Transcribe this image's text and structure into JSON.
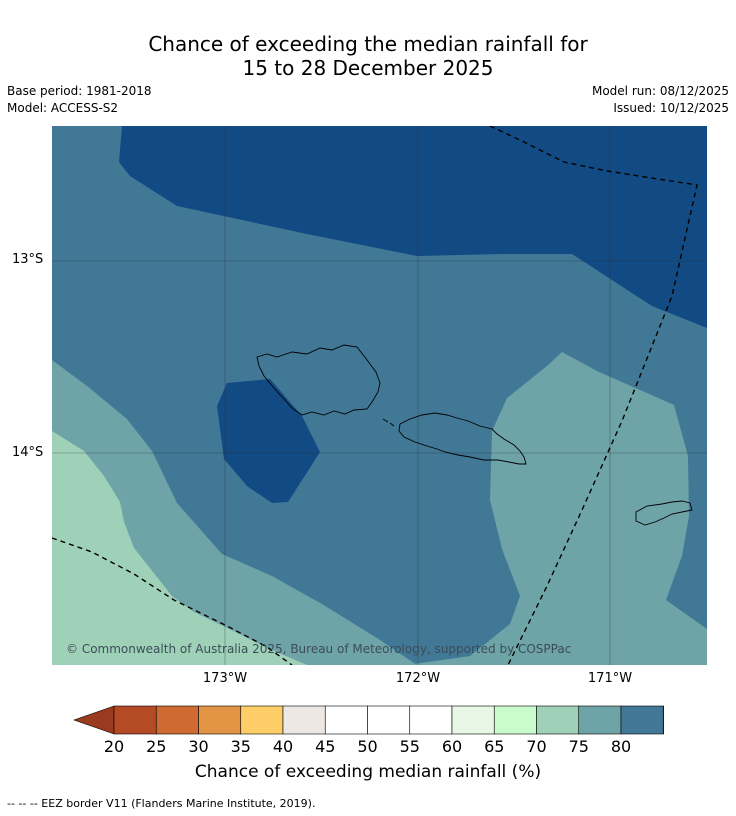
{
  "title": {
    "line1": "Chance of exceeding the median rainfall for",
    "line2": "15 to 28 December 2025"
  },
  "meta": {
    "base_period": "Base period: 1981-2018",
    "model": "Model: ACCESS-S2",
    "model_run": "Model run: 08/12/2025",
    "issued": "Issued: 10/12/2025"
  },
  "map": {
    "lat_labels": [
      "13°S",
      "14°S"
    ],
    "lon_labels": [
      "173°W",
      "172°W",
      "171°W"
    ],
    "copyright": "© Commonwealth of Australia 2025, Bureau of Meteorology, supported by COSPPac",
    "colors": {
      "gt80": "#124a84",
      "c75_80": "#417896",
      "c70_75": "#6ea3a7",
      "c65_70": "#9fd1b9"
    }
  },
  "colorbar": {
    "ticks": [
      "20",
      "25",
      "30",
      "35",
      "40",
      "45",
      "50",
      "55",
      "60",
      "65",
      "70",
      "75",
      "80"
    ],
    "colors": [
      "#b54b25",
      "#d06a33",
      "#e29445",
      "#fdcd68",
      "#ede8e3",
      "#ffffff",
      "#ffffff",
      "#ffffff",
      "#e8f7e6",
      "#cafccb",
      "#9fd1b9",
      "#6ea3a7",
      "#417896"
    ],
    "under_color": "#9c3a1f",
    "over_color": "#124a84",
    "label": "Chance of exceeding median rainfall (%)"
  },
  "legend": {
    "eez": "--  --  -- EEZ border V11 (Flanders Marine Institute, 2019)."
  }
}
